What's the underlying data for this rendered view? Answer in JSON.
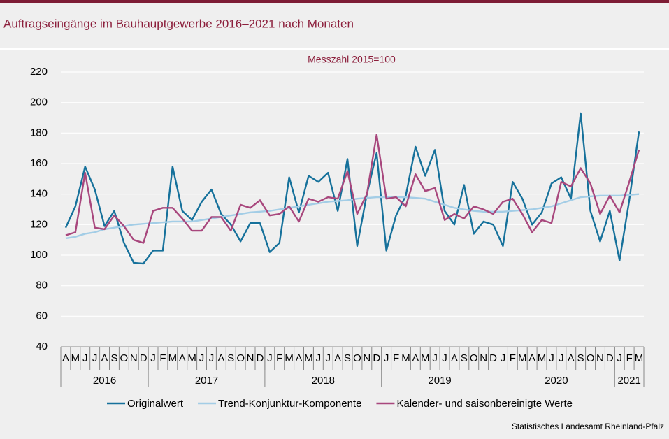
{
  "chart_data": {
    "type": "line",
    "title": "Auftragseingänge im Bauhauptgewerbe 2016–2021 nach Monaten",
    "subtitle": "Messzahl 2015=100",
    "source": "Statistisches Landesamt Rheinland-Pfalz",
    "categories": [
      "A",
      "M",
      "J",
      "J",
      "A",
      "S",
      "O",
      "N",
      "D",
      "J",
      "F",
      "M",
      "A",
      "M",
      "J",
      "J",
      "A",
      "S",
      "O",
      "N",
      "D",
      "J",
      "F",
      "M",
      "A",
      "M",
      "J",
      "J",
      "A",
      "S",
      "O",
      "N",
      "D",
      "J",
      "F",
      "M",
      "A",
      "M",
      "J",
      "J",
      "A",
      "S",
      "O",
      "N",
      "D",
      "J",
      "F",
      "M",
      "A",
      "M",
      "J",
      "J",
      "A",
      "S",
      "O",
      "N",
      "D",
      "J",
      "F",
      "M"
    ],
    "years": [
      "2016",
      "2017",
      "2018",
      "2019",
      "2020",
      "2021"
    ],
    "ylim": [
      40,
      220
    ],
    "yticks": [
      40,
      60,
      80,
      100,
      120,
      140,
      160,
      180,
      200,
      220
    ],
    "grid": true,
    "series": [
      {
        "name": "Originalwert",
        "color": "#16719b",
        "values": [
          118,
          132,
          158,
          143,
          119,
          129,
          108,
          95,
          94.5,
          103,
          103,
          158,
          129,
          123,
          135,
          143,
          127,
          120,
          109,
          121,
          121,
          102,
          108,
          151,
          128,
          152,
          148,
          154,
          129,
          163,
          106,
          140,
          167,
          103,
          126,
          139,
          171,
          152,
          169,
          129,
          120,
          146,
          114,
          122,
          120,
          106,
          148,
          137,
          120,
          128,
          147,
          151,
          137,
          193,
          129,
          109,
          129,
          96.5,
          136,
          181
        ]
      },
      {
        "name": "Trend-Konjunktur-Komponente",
        "color": "#a3cde6",
        "values": [
          111,
          112,
          114,
          115,
          117,
          118,
          119,
          120,
          120.5,
          121,
          121.5,
          122,
          122,
          122,
          123,
          124,
          125,
          126,
          127,
          128,
          128.5,
          129,
          130,
          131,
          132,
          133,
          134,
          135,
          135.5,
          136,
          137,
          137.5,
          138,
          138,
          138,
          138,
          137.5,
          137,
          135,
          133,
          131,
          130,
          129,
          128.5,
          128.5,
          128.5,
          129,
          129.5,
          130,
          131,
          132,
          134,
          136,
          138,
          138.5,
          139,
          139,
          139,
          139.5,
          140
        ]
      },
      {
        "name": "Kalender- und saisonbereinigte Werte",
        "color": "#a8477d",
        "values": [
          113,
          115,
          154,
          118,
          117,
          126,
          119,
          110,
          108,
          129,
          131,
          131,
          124,
          116,
          116,
          125,
          125,
          116,
          133,
          131,
          136,
          126,
          127,
          132,
          122,
          137,
          135,
          138,
          137,
          155,
          127,
          140,
          179,
          137,
          138,
          132,
          153,
          142,
          144,
          123,
          127,
          124,
          132,
          130,
          127,
          135,
          137,
          127,
          115,
          123,
          121,
          148,
          145,
          157,
          147,
          127,
          139,
          128,
          148,
          169
        ]
      }
    ]
  }
}
